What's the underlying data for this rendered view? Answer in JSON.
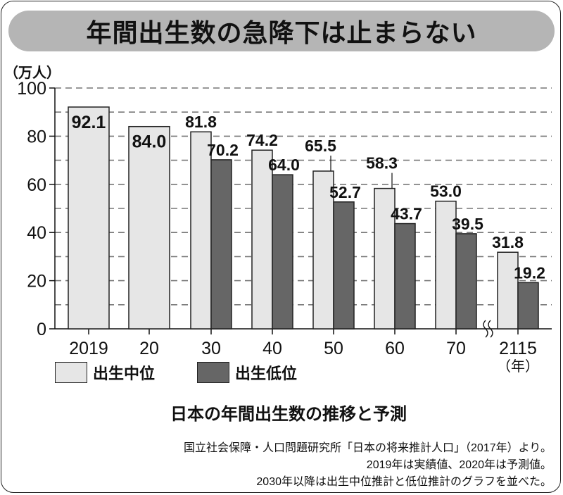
{
  "header": {
    "title": "年間出生数の急降下は止まらない"
  },
  "chart_data": {
    "type": "bar",
    "title": "日本の年間出生数の推移と予測",
    "ylabel": "（万人）",
    "xlabel": "（年）",
    "ylim": [
      0,
      100
    ],
    "yticks": [
      "0",
      "20",
      "40",
      "60",
      "80",
      "100"
    ],
    "grid": "dashed every 10",
    "categories": [
      "2019",
      "20",
      "30",
      "40",
      "50",
      "60",
      "70",
      "2115"
    ],
    "series": [
      {
        "name": "出生中位",
        "color": "#e6e6e6",
        "values": [
          92.1,
          84.0,
          81.8,
          74.2,
          65.5,
          58.3,
          53.0,
          31.8
        ],
        "labels": [
          "92.1",
          "84.0",
          "81.8",
          "74.2",
          "65.5",
          "58.3",
          "53.0",
          "31.8"
        ]
      },
      {
        "name": "出生低位",
        "color": "#666666",
        "values": [
          null,
          null,
          70.2,
          64.0,
          52.7,
          43.7,
          39.5,
          19.2
        ],
        "labels": [
          null,
          null,
          "70.2",
          "64.0",
          "52.7",
          "43.7",
          "39.5",
          "19.2"
        ]
      }
    ],
    "axis_break": "between 70 and 2115",
    "legend": "bottom-left"
  },
  "notes": [
    "国立社会保障・人口問題研究所「日本の将来推計人口」（2017年）より。",
    "2019年は実績値、2020年は予測値。",
    "2030年以降は出生中位推計と低位推計のグラフを並べた。"
  ]
}
